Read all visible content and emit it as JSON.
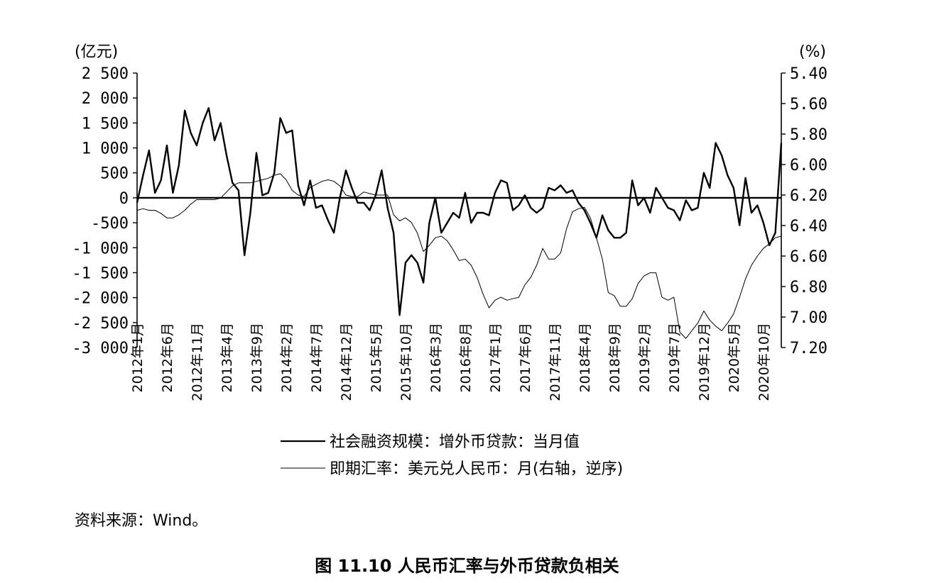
{
  "chart_data": {
    "type": "line",
    "left_unit": "(亿元)",
    "right_unit": "(%)",
    "left_axis": {
      "ylim": [
        -3000,
        2500
      ],
      "ticks": [
        2500,
        2000,
        1500,
        1000,
        500,
        0,
        -500,
        -1000,
        -1500,
        -2000,
        -2500,
        -3000
      ],
      "tick_labels": [
        "2 500",
        "2 000",
        "1 500",
        "1 000",
        "500",
        "0",
        "-500",
        "-1 000",
        "-1 500",
        "-2 000",
        "-2 500",
        "-3 000"
      ]
    },
    "right_axis": {
      "ylim": [
        5.4,
        7.2
      ],
      "inverted": true,
      "ticks": [
        5.4,
        5.6,
        5.8,
        6.0,
        6.2,
        6.4,
        6.6,
        6.8,
        7.0,
        7.2
      ],
      "tick_labels": [
        "5.40",
        "5.60",
        "5.80",
        "6.00",
        "6.20",
        "6.40",
        "6.60",
        "6.80",
        "7.00",
        "7.20"
      ]
    },
    "x_tick_labels": [
      "2012年1月",
      "2012年6月",
      "2012年11月",
      "2013年4月",
      "2013年9月",
      "2014年2月",
      "2014年7月",
      "2014年12月",
      "2015年5月",
      "2015年10月",
      "2016年3月",
      "2016年8月",
      "2017年1月",
      "2017年6月",
      "2017年11月",
      "2018年4月",
      "2018年9月",
      "2019年2月",
      "2019年7月",
      "2019年12月",
      "2020年5月",
      "2020年10月"
    ],
    "series": [
      {
        "name": "社会融资规模：增外币贷款：当月值",
        "axis": "left",
        "style": "solid",
        "x": [
          2012.0,
          2012.083,
          2012.167,
          2012.25,
          2012.333,
          2012.417,
          2012.5,
          2012.583,
          2012.667,
          2012.75,
          2012.833,
          2012.917,
          2013.0,
          2013.083,
          2013.167,
          2013.25,
          2013.333,
          2013.417,
          2013.5,
          2013.583,
          2013.667,
          2013.75,
          2013.833,
          2013.917,
          2014.0,
          2014.083,
          2014.167,
          2014.25,
          2014.333,
          2014.417,
          2014.5,
          2014.583,
          2014.667,
          2014.75,
          2014.833,
          2014.917,
          2015.0,
          2015.083,
          2015.167,
          2015.25,
          2015.333,
          2015.417,
          2015.5,
          2015.583,
          2015.667,
          2015.75,
          2015.833,
          2015.917,
          2016.0,
          2016.083,
          2016.167,
          2016.25,
          2016.333,
          2016.417,
          2016.5,
          2016.583,
          2016.667,
          2016.75,
          2016.833,
          2016.917,
          2017.0,
          2017.083,
          2017.167,
          2017.25,
          2017.333,
          2017.417,
          2017.5,
          2017.583,
          2017.667,
          2017.75,
          2017.833,
          2017.917,
          2018.0,
          2018.083,
          2018.167,
          2018.25,
          2018.333,
          2018.417,
          2018.5,
          2018.583,
          2018.667,
          2018.75,
          2018.833,
          2018.917,
          2019.0,
          2019.083,
          2019.167,
          2019.25,
          2019.333,
          2019.417,
          2019.5,
          2019.583,
          2019.667,
          2019.75,
          2019.833,
          2019.917,
          2020.0,
          2020.083,
          2020.167,
          2020.25,
          2020.333,
          2020.417,
          2020.5,
          2020.583,
          2020.667,
          2020.75,
          2020.833,
          2020.917,
          2021.0
        ],
        "y": [
          -100,
          450,
          950,
          100,
          350,
          1050,
          100,
          650,
          1750,
          1300,
          1050,
          1500,
          1800,
          1150,
          1500,
          850,
          300,
          150,
          -1150,
          -300,
          900,
          50,
          100,
          500,
          1600,
          1300,
          1350,
          250,
          -150,
          350,
          -200,
          -150,
          -450,
          -700,
          0,
          550,
          200,
          -100,
          -100,
          -250,
          50,
          550,
          -200,
          -700,
          -2350,
          -1300,
          -1150,
          -1300,
          -1700,
          -500,
          0,
          -700,
          -500,
          -300,
          -400,
          100,
          -500,
          -300,
          -300,
          -350,
          100,
          350,
          300,
          -250,
          -150,
          50,
          -200,
          -300,
          -200,
          200,
          150,
          250,
          100,
          150,
          -100,
          -250,
          -500,
          -800,
          -350,
          -650,
          -800,
          -800,
          -700,
          350,
          -150,
          0,
          -300,
          200,
          0,
          -200,
          -250,
          -450,
          -50,
          -250,
          -200,
          500,
          200,
          1100,
          850,
          450,
          200,
          -550,
          400,
          -300,
          -150,
          -500,
          -950,
          -700,
          1100
        ]
      },
      {
        "name": "即期汇率：美元兑人民币：月(右轴，逆序)",
        "axis": "right",
        "style": "thin",
        "x": [
          2012.0,
          2012.083,
          2012.167,
          2012.25,
          2012.333,
          2012.417,
          2012.5,
          2012.583,
          2012.667,
          2012.75,
          2012.833,
          2012.917,
          2013.0,
          2013.083,
          2013.167,
          2013.25,
          2013.333,
          2013.417,
          2013.5,
          2013.583,
          2013.667,
          2013.75,
          2013.833,
          2013.917,
          2014.0,
          2014.083,
          2014.167,
          2014.25,
          2014.333,
          2014.417,
          2014.5,
          2014.583,
          2014.667,
          2014.75,
          2014.833,
          2014.917,
          2015.0,
          2015.083,
          2015.167,
          2015.25,
          2015.333,
          2015.417,
          2015.5,
          2015.583,
          2015.667,
          2015.75,
          2015.833,
          2015.917,
          2016.0,
          2016.083,
          2016.167,
          2016.25,
          2016.333,
          2016.417,
          2016.5,
          2016.583,
          2016.667,
          2016.75,
          2016.833,
          2016.917,
          2017.0,
          2017.083,
          2017.167,
          2017.25,
          2017.333,
          2017.417,
          2017.5,
          2017.583,
          2017.667,
          2017.75,
          2017.833,
          2017.917,
          2018.0,
          2018.083,
          2018.167,
          2018.25,
          2018.333,
          2018.417,
          2018.5,
          2018.583,
          2018.667,
          2018.75,
          2018.833,
          2018.917,
          2019.0,
          2019.083,
          2019.167,
          2019.25,
          2019.333,
          2019.417,
          2019.5,
          2019.583,
          2019.667,
          2019.75,
          2019.833,
          2019.917,
          2020.0,
          2020.083,
          2020.167,
          2020.25,
          2020.333,
          2020.417,
          2020.5,
          2020.583,
          2020.667,
          2020.75,
          2020.833,
          2020.917,
          2021.0
        ],
        "y": [
          6.3,
          6.29,
          6.3,
          6.3,
          6.32,
          6.35,
          6.35,
          6.33,
          6.3,
          6.26,
          6.23,
          6.23,
          6.23,
          6.23,
          6.22,
          6.18,
          6.14,
          6.12,
          6.12,
          6.12,
          6.11,
          6.1,
          6.09,
          6.07,
          6.06,
          6.1,
          6.17,
          6.2,
          6.21,
          6.15,
          6.13,
          6.11,
          6.1,
          6.11,
          6.14,
          6.2,
          6.21,
          6.21,
          6.18,
          6.19,
          6.2,
          6.2,
          6.2,
          6.33,
          6.37,
          6.35,
          6.38,
          6.45,
          6.57,
          6.53,
          6.48,
          6.47,
          6.5,
          6.56,
          6.63,
          6.62,
          6.66,
          6.74,
          6.85,
          6.94,
          6.89,
          6.87,
          6.89,
          6.88,
          6.87,
          6.79,
          6.74,
          6.66,
          6.55,
          6.62,
          6.62,
          6.58,
          6.42,
          6.31,
          6.29,
          6.28,
          6.35,
          6.48,
          6.62,
          6.84,
          6.86,
          6.93,
          6.93,
          6.88,
          6.78,
          6.73,
          6.71,
          6.71,
          6.87,
          6.89,
          6.87,
          7.1,
          7.14,
          7.09,
          7.04,
          6.96,
          7.02,
          7.06,
          7.09,
          7.04,
          6.98,
          6.87,
          6.75,
          6.66,
          6.6,
          6.55,
          6.52,
          6.48,
          6.47
        ]
      }
    ],
    "source": "资料来源：Wind。",
    "caption": "图 11.10   人民币汇率与外币贷款负相关"
  }
}
